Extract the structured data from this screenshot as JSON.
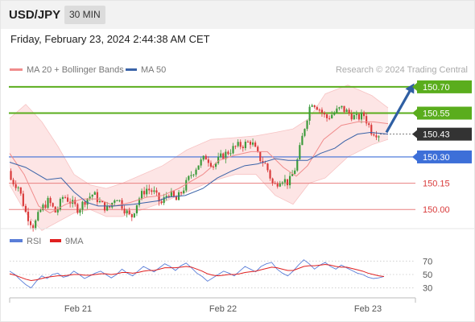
{
  "header": {
    "symbol": "USD/JPY",
    "interval": "30 MIN",
    "datetime": "Friday, February 23, 2024 2:44:38 AM CET"
  },
  "legend": {
    "ma20_label": "MA 20 + Bollinger Bands",
    "ma50_label": "MA 50",
    "copyright": "Research © 2024 Trading Central",
    "rsi_label": "RSI",
    "rsi_ma_label": "9MA"
  },
  "colors": {
    "up": "#3a9a3a",
    "down": "#d93a3a",
    "ma20": "#f08c8c",
    "ma50": "#3a63a8",
    "bands": "#fde0e0",
    "resistance": "#5aad1d",
    "pivot": "#3d6fd8",
    "support": "#e88080",
    "arrow": "#2f5fa3",
    "current": "#333333",
    "rsi": "#5a7ed8",
    "rsi_ma": "#e02020"
  },
  "chart_data": [
    {
      "type": "candlestick",
      "title": "USD/JPY 30 MIN",
      "x_ticks": [
        "Feb 21",
        "Feb 22",
        "Feb 23"
      ],
      "ylim": [
        149.9,
        150.75
      ],
      "levels": [
        {
          "value": 150.7,
          "label": "150.70",
          "kind": "resistance"
        },
        {
          "value": 150.55,
          "label": "150.55",
          "kind": "resistance"
        },
        {
          "value": 150.43,
          "label": "150.43",
          "kind": "current"
        },
        {
          "value": 150.3,
          "label": "150.30",
          "kind": "pivot"
        },
        {
          "value": 150.15,
          "label": "150.15",
          "kind": "support"
        },
        {
          "value": 150.0,
          "label": "150.00",
          "kind": "support"
        }
      ],
      "close_path": [
        150.17,
        150.13,
        149.98,
        149.9,
        150.0,
        150.05,
        149.98,
        150.08,
        150.04,
        150.0,
        150.06,
        150.09,
        150.03,
        150.0,
        150.08,
        150.01,
        149.95,
        150.06,
        150.12,
        150.1,
        150.03,
        150.1,
        150.05,
        150.12,
        150.2,
        150.26,
        150.3,
        150.25,
        150.3,
        150.33,
        150.36,
        150.37,
        150.39,
        150.3,
        150.25,
        150.13,
        150.18,
        150.15,
        150.25,
        150.45,
        150.62,
        150.58,
        150.52,
        150.55,
        150.58,
        150.55,
        150.52,
        150.54,
        150.45,
        150.43
      ],
      "open_price": 150.22,
      "ma50_points": [
        [
          0,
          150.27
        ],
        [
          20,
          150.24
        ],
        [
          46,
          150.17
        ],
        [
          64,
          150.18
        ],
        [
          80,
          150.1
        ],
        [
          96,
          150.04
        ],
        [
          110,
          150.02
        ],
        [
          130,
          150.02
        ],
        [
          154,
          150.03
        ],
        [
          185,
          150.05
        ],
        [
          196,
          150.07
        ],
        [
          218,
          150.08
        ],
        [
          240,
          150.12
        ],
        [
          258,
          150.18
        ],
        [
          276,
          150.22
        ],
        [
          292,
          150.25
        ],
        [
          308,
          150.26
        ],
        [
          330,
          150.29
        ],
        [
          346,
          150.28
        ],
        [
          370,
          150.28
        ],
        [
          386,
          150.32
        ],
        [
          404,
          150.35
        ],
        [
          416,
          150.39
        ],
        [
          432,
          150.43
        ],
        [
          448,
          150.44
        ],
        [
          470,
          150.43
        ]
      ],
      "ma20_points": [
        [
          0,
          150.32
        ],
        [
          18,
          150.2
        ],
        [
          36,
          150.02
        ],
        [
          50,
          149.98
        ],
        [
          70,
          150.03
        ],
        [
          90,
          150.06
        ],
        [
          110,
          150.06
        ],
        [
          130,
          150.02
        ],
        [
          150,
          150.04
        ],
        [
          170,
          150.07
        ],
        [
          190,
          150.08
        ],
        [
          210,
          150.12
        ],
        [
          240,
          150.2
        ],
        [
          260,
          150.28
        ],
        [
          280,
          150.31
        ],
        [
          300,
          150.33
        ],
        [
          320,
          150.33
        ],
        [
          340,
          150.24
        ],
        [
          356,
          150.19
        ],
        [
          370,
          150.25
        ],
        [
          390,
          150.4
        ],
        [
          412,
          150.48
        ],
        [
          432,
          150.5
        ],
        [
          452,
          150.5
        ],
        [
          470,
          150.49
        ]
      ],
      "band_upper": [
        [
          0,
          150.52
        ],
        [
          20,
          150.6
        ],
        [
          40,
          150.5
        ],
        [
          60,
          150.36
        ],
        [
          80,
          150.2
        ],
        [
          100,
          150.14
        ],
        [
          120,
          150.12
        ],
        [
          140,
          150.15
        ],
        [
          165,
          150.2
        ],
        [
          190,
          150.25
        ],
        [
          220,
          150.34
        ],
        [
          250,
          150.4
        ],
        [
          280,
          150.41
        ],
        [
          306,
          150.42
        ],
        [
          330,
          150.44
        ],
        [
          352,
          150.46
        ],
        [
          372,
          150.52
        ],
        [
          392,
          150.66
        ],
        [
          420,
          150.71
        ],
        [
          450,
          150.65
        ],
        [
          470,
          150.58
        ]
      ],
      "band_lower": [
        [
          0,
          150.14
        ],
        [
          20,
          149.98
        ],
        [
          40,
          149.88
        ],
        [
          60,
          149.93
        ],
        [
          80,
          149.98
        ],
        [
          100,
          150.0
        ],
        [
          120,
          149.96
        ],
        [
          140,
          149.96
        ],
        [
          165,
          150.0
        ],
        [
          190,
          150.04
        ],
        [
          220,
          150.1
        ],
        [
          250,
          150.16
        ],
        [
          280,
          150.2
        ],
        [
          306,
          150.2
        ],
        [
          330,
          150.08
        ],
        [
          352,
          150.03
        ],
        [
          372,
          150.15
        ],
        [
          392,
          150.18
        ],
        [
          420,
          150.3
        ],
        [
          450,
          150.37
        ],
        [
          470,
          150.4
        ]
      ]
    },
    {
      "type": "line",
      "title": "RSI",
      "ylim": [
        20,
        80
      ],
      "y_ticks": [
        70,
        50,
        30
      ],
      "series": [
        {
          "name": "RSI",
          "values": [
            55,
            50,
            42,
            35,
            30,
            40,
            48,
            44,
            50,
            52,
            46,
            48,
            55,
            50,
            44,
            48,
            52,
            55,
            50,
            45,
            50,
            58,
            52,
            48,
            55,
            62,
            58,
            54,
            60,
            66,
            62,
            56,
            63,
            67,
            60,
            52,
            47,
            40,
            45,
            50,
            55,
            52,
            48,
            55,
            62,
            58,
            54,
            62,
            66,
            68,
            58,
            52,
            48,
            55,
            64,
            72,
            66,
            58,
            64,
            68,
            62,
            58,
            64,
            60,
            56,
            52,
            50,
            46,
            44,
            45,
            47
          ]
        },
        {
          "name": "9MA",
          "values": [
            51,
            49,
            46,
            43,
            41,
            42,
            44,
            46,
            47,
            48,
            48,
            49,
            50,
            50,
            49,
            49,
            50,
            51,
            51,
            50,
            51,
            53,
            53,
            52,
            53,
            55,
            56,
            56,
            58,
            60,
            60,
            60,
            61,
            62,
            61,
            58,
            55,
            51,
            49,
            48,
            49,
            50,
            50,
            51,
            53,
            54,
            55,
            57,
            59,
            61,
            60,
            58,
            56,
            56,
            59,
            62,
            63,
            63,
            64,
            65,
            64,
            62,
            61,
            61,
            59,
            57,
            55,
            52,
            50,
            48,
            47
          ]
        }
      ]
    }
  ]
}
